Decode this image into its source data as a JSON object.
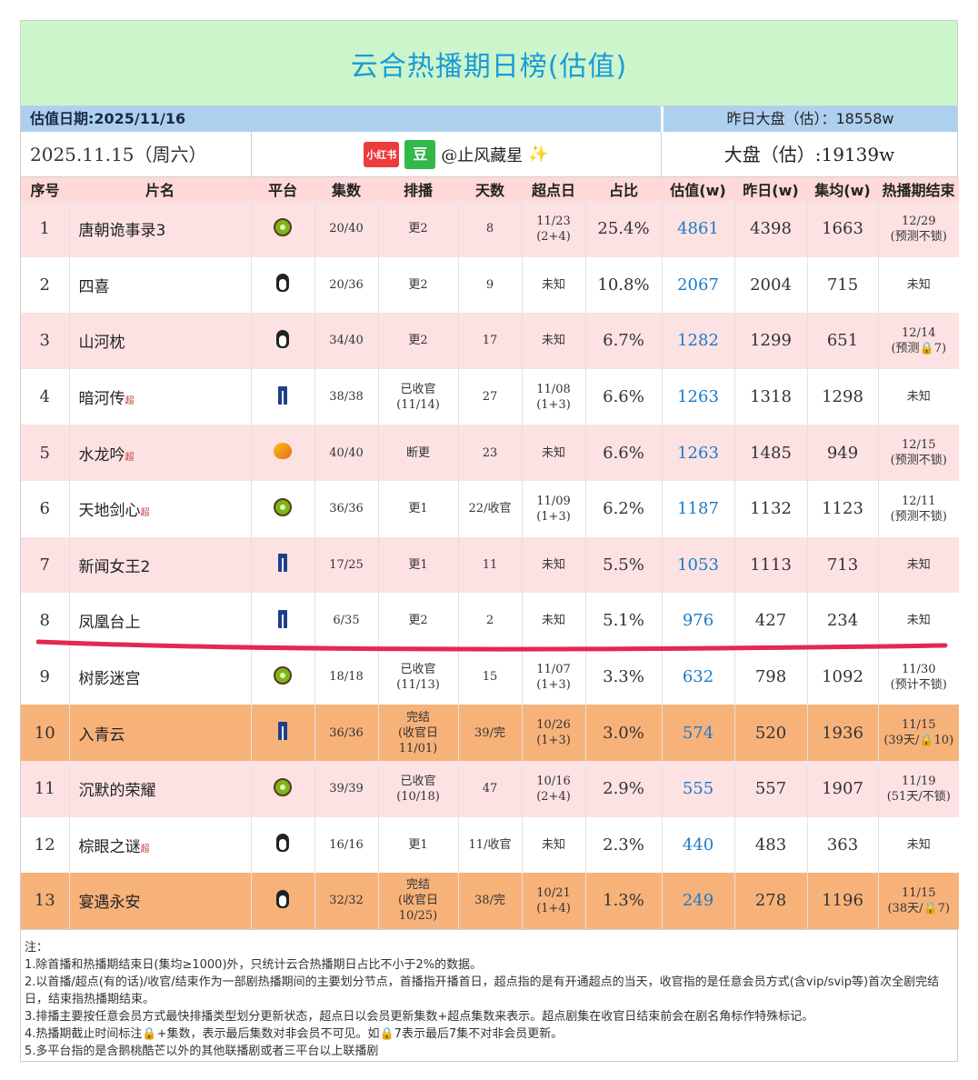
{
  "title": "云合热播期日榜(估值)",
  "info": {
    "estimate_date": "估值日期:2025/11/16",
    "yesterday_market": "昨日大盘（估）：18558w",
    "date": "2025.11.15（周六）",
    "badge_xhs": "小红书",
    "badge_douban": "豆",
    "handle": "@止风藏星",
    "sparkle": "✨",
    "market": "大盘（估）:19139w"
  },
  "headers": [
    "序号",
    "片名",
    "平台",
    "集数",
    "排播",
    "天数",
    "超点日",
    "占比",
    "估值(w)",
    "昨日(w)",
    "集均(w)",
    "热播期结束"
  ],
  "rows": [
    {
      "no": "1",
      "name": "唐朝诡事录3",
      "chao": "",
      "platform": "kiwi",
      "eps": "20/40",
      "sched": "更2",
      "days": "8",
      "superday": "11/23\n(2+4)",
      "share": "25.4%",
      "est": "4861",
      "yday": "4398",
      "avg": "1663",
      "end": "12/29\n(预测不锁)",
      "style": "pink"
    },
    {
      "no": "2",
      "name": "四喜",
      "chao": "",
      "platform": "penguin",
      "eps": "20/36",
      "sched": "更2",
      "days": "9",
      "superday": "未知",
      "share": "10.8%",
      "est": "2067",
      "yday": "2004",
      "avg": "715",
      "end": "未知",
      "style": "white"
    },
    {
      "no": "3",
      "name": "山河枕",
      "chao": "",
      "platform": "penguin",
      "eps": "34/40",
      "sched": "更2",
      "days": "17",
      "superday": "未知",
      "share": "6.7%",
      "est": "1282",
      "yday": "1299",
      "avg": "651",
      "end": "12/14\n(预测🔒7)",
      "style": "pink"
    },
    {
      "no": "4",
      "name": "暗河传",
      "chao": "超",
      "platform": "jeans",
      "eps": "38/38",
      "sched": "已收官\n(11/14)",
      "days": "27",
      "superday": "11/08\n(1+3)",
      "share": "6.6%",
      "est": "1263",
      "yday": "1318",
      "avg": "1298",
      "end": "未知",
      "style": "white"
    },
    {
      "no": "5",
      "name": "水龙吟",
      "chao": "超",
      "platform": "mango",
      "eps": "40/40",
      "sched": "断更",
      "days": "23",
      "superday": "未知",
      "share": "6.6%",
      "est": "1263",
      "yday": "1485",
      "avg": "949",
      "end": "12/15\n(预测不锁)",
      "style": "pink"
    },
    {
      "no": "6",
      "name": "天地剑心",
      "chao": "超",
      "platform": "kiwi",
      "eps": "36/36",
      "sched": "更1",
      "days": "22/收官",
      "superday": "11/09\n(1+3)",
      "share": "6.2%",
      "est": "1187",
      "yday": "1132",
      "avg": "1123",
      "end": "12/11\n(预测不锁)",
      "style": "white"
    },
    {
      "no": "7",
      "name": "新闻女王2",
      "chao": "",
      "platform": "jeans",
      "eps": "17/25",
      "sched": "更1",
      "days": "11",
      "superday": "未知",
      "share": "5.5%",
      "est": "1053",
      "yday": "1113",
      "avg": "713",
      "end": "未知",
      "style": "pink"
    },
    {
      "no": "8",
      "name": "凤凰台上",
      "chao": "",
      "platform": "jeans",
      "eps": "6/35",
      "sched": "更2",
      "days": "2",
      "superday": "未知",
      "share": "5.1%",
      "est": "976",
      "yday": "427",
      "avg": "234",
      "end": "未知",
      "style": "white"
    },
    {
      "no": "9",
      "name": "树影迷宫",
      "chao": "",
      "platform": "kiwi",
      "eps": "18/18",
      "sched": "已收官\n(11/13)",
      "days": "15",
      "superday": "11/07\n(1+3)",
      "share": "3.3%",
      "est": "632",
      "yday": "798",
      "avg": "1092",
      "end": "11/30\n(预计不锁)",
      "style": "white"
    },
    {
      "no": "10",
      "name": "入青云",
      "chao": "",
      "platform": "jeans",
      "eps": "36/36",
      "sched": "完结\n(收官日\n11/01)",
      "days": "39/完",
      "superday": "10/26\n(1+3)",
      "share": "3.0%",
      "est": "574",
      "yday": "520",
      "avg": "1936",
      "end": "11/15\n(39天/🔒10)",
      "style": "orange"
    },
    {
      "no": "11",
      "name": "沉默的荣耀",
      "chao": "",
      "platform": "kiwi",
      "eps": "39/39",
      "sched": "已收官\n(10/18)",
      "days": "47",
      "superday": "10/16\n(2+4)",
      "share": "2.9%",
      "est": "555",
      "yday": "557",
      "avg": "1907",
      "end": "11/19\n(51天/不锁)",
      "style": "pink"
    },
    {
      "no": "12",
      "name": "棕眼之谜",
      "chao": "超",
      "platform": "penguin",
      "eps": "16/16",
      "sched": "更1",
      "days": "11/收官",
      "superday": "未知",
      "share": "2.3%",
      "est": "440",
      "yday": "483",
      "avg": "363",
      "end": "未知",
      "style": "white"
    },
    {
      "no": "13",
      "name": "宴遇永安",
      "chao": "",
      "platform": "penguin",
      "eps": "32/32",
      "sched": "完结\n(收官日\n10/25)",
      "days": "38/完",
      "superday": "10/21\n(1+4)",
      "share": "1.3%",
      "est": "249",
      "yday": "278",
      "avg": "1196",
      "end": "11/15\n(38天/🔒7)",
      "style": "orange"
    }
  ],
  "notes": [
    "注：",
    "1.除首播和热播期结束日(集均≥1000)外，只统计云合热播期日占比不小于2%的数据。",
    "2.以首播/超点(有的话)/收官/结束作为一部剧热播期间的主要划分节点，首播指开播首日，超点指的是有开通超点的当天，收官指的是任意会员方式(含vip/svip等)首次全剧完结日，结束指热播期结束。",
    "3.排播主要按任意会员方式最快排播类型划分更新状态，超点日以会员更新集数+超点集数来表示。超点剧集在收官日结束前会在剧名角标作特殊标记。",
    "4.热播期截止时间标注🔒+集数，表示最后集数对非会员不可见。如🔒7表示最后7集不对非会员更新。",
    "5.多平台指的是含鹅桃酷芒以外的其他联播剧或者三平台以上联播剧"
  ],
  "colors": {
    "title_bg": "#ccf5cc",
    "title_text": "#1a9bd6",
    "header_bg": "#ffd8d8",
    "pink_row": "#fce2e2",
    "orange_row": "#f7b27a",
    "info_bg": "#aed0ef",
    "estimate_text": "#1a7bc9",
    "red_line": "#e5284f"
  }
}
